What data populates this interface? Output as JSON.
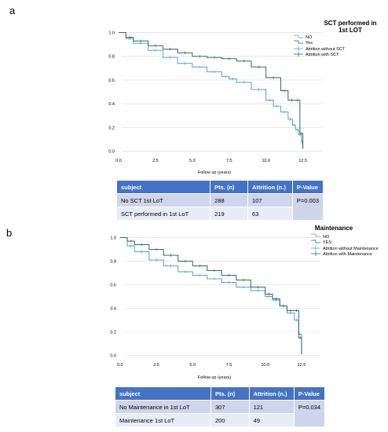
{
  "panels": [
    {
      "letter": "a",
      "legend": {
        "title_line1": "SCT performed in",
        "title_line2": "1st LOT",
        "items": [
          "NO",
          "Yes",
          "Attrition without SCT",
          "Attrition with SCT"
        ]
      },
      "table": {
        "headers": [
          "subject",
          "Pts. (n)",
          "Attrition (n.)",
          "P-Value"
        ],
        "rows": [
          {
            "subject": "No SCT 1st LoT",
            "pts": "288",
            "attrition": "107"
          },
          {
            "subject": "SCT performed in 1st LoT",
            "pts": "219",
            "attrition": "63"
          }
        ],
        "pvalue": "P=0.003"
      }
    },
    {
      "letter": "b",
      "legend": {
        "title_line1": "Maintenance",
        "title_line2": "",
        "items": [
          "NO",
          "YES",
          "Attrition without Maintenance",
          "Attrition with Maintenance"
        ]
      },
      "table": {
        "headers": [
          "subject",
          "Pts. (n)",
          "Attrition (n.)",
          "P-Value"
        ],
        "rows": [
          {
            "subject": "No Maintenance in 1st LoT",
            "pts": "307",
            "attrition": "121"
          },
          {
            "subject": "Maintenance 1st LoT",
            "pts": "200",
            "attrition": "49"
          }
        ],
        "pvalue": "P=0.034"
      }
    }
  ],
  "chart_data": [
    {
      "type": "line",
      "xlabel": "Follow up (years)",
      "ylabel": "",
      "xlim": [
        -0.8,
        13.8
      ],
      "ylim": [
        -0.05,
        1.05
      ],
      "xticks": [
        "0.0",
        "2.5",
        "5.0",
        "7.5",
        "10.0",
        "12.5"
      ],
      "yticks": [
        "0.0",
        "0.2",
        "0.4",
        "0.6",
        "0.8",
        "1.0"
      ],
      "colors": {
        "no": "#4aa3d8",
        "yes": "#2e6b5a"
      },
      "series": [
        {
          "name": "NO",
          "x": [
            0,
            0.5,
            1,
            2,
            3,
            4,
            5,
            6,
            7,
            7.5,
            8,
            9,
            10,
            10.5,
            11,
            11.5,
            11.8,
            12.0,
            12.2,
            12.4,
            12.5
          ],
          "y": [
            1.0,
            0.95,
            0.91,
            0.85,
            0.79,
            0.74,
            0.71,
            0.67,
            0.63,
            0.61,
            0.58,
            0.52,
            0.43,
            0.38,
            0.33,
            0.27,
            0.22,
            0.18,
            0.14,
            0.08,
            0.02
          ]
        },
        {
          "name": "Yes",
          "x": [
            0,
            0.5,
            1,
            2,
            3,
            4,
            5,
            6,
            7,
            8,
            9,
            10,
            11,
            11.5,
            12.0,
            12.3,
            12.5
          ],
          "y": [
            1.0,
            0.96,
            0.93,
            0.89,
            0.86,
            0.83,
            0.8,
            0.79,
            0.78,
            0.76,
            0.71,
            0.62,
            0.51,
            0.43,
            0.43,
            0.15,
            0.02
          ]
        }
      ]
    },
    {
      "type": "line",
      "xlabel": "Follow up (years)",
      "ylabel": "",
      "xlim": [
        -0.8,
        13.8
      ],
      "ylim": [
        -0.05,
        1.05
      ],
      "xticks": [
        "0.0",
        "2.5",
        "5.0",
        "7.5",
        "10.0",
        "12.5"
      ],
      "yticks": [
        "0.0",
        "0.2",
        "0.4",
        "0.6",
        "0.8",
        "1.0"
      ],
      "colors": {
        "no": "#4aa3d8",
        "yes": "#2e6b5a"
      },
      "series": [
        {
          "name": "NO",
          "x": [
            0,
            0.5,
            1,
            2,
            3,
            4,
            5,
            6,
            7,
            8,
            9,
            10,
            10.5,
            11,
            11.5,
            12.0,
            12.3,
            12.5
          ],
          "y": [
            1.0,
            0.93,
            0.88,
            0.81,
            0.76,
            0.71,
            0.68,
            0.65,
            0.62,
            0.58,
            0.55,
            0.5,
            0.47,
            0.42,
            0.36,
            0.3,
            0.18,
            0.01
          ]
        },
        {
          "name": "YES",
          "x": [
            0,
            0.5,
            1,
            2,
            3,
            4,
            5,
            6,
            7,
            8,
            9,
            10,
            10.5,
            11,
            11.5,
            12.0,
            12.3,
            12.5
          ],
          "y": [
            1.0,
            0.97,
            0.94,
            0.9,
            0.85,
            0.8,
            0.76,
            0.72,
            0.68,
            0.64,
            0.58,
            0.52,
            0.48,
            0.42,
            0.38,
            0.38,
            0.15,
            0.01
          ]
        }
      ]
    }
  ]
}
